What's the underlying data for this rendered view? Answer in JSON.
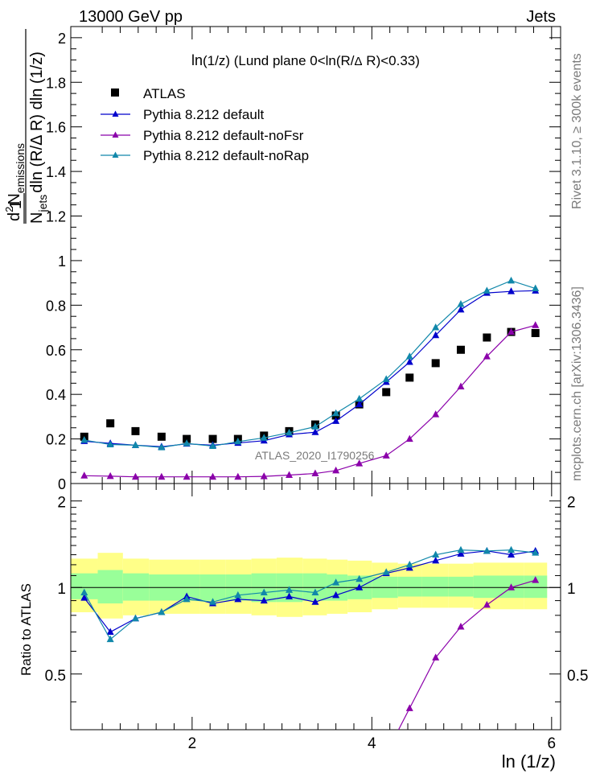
{
  "header": {
    "left": "13000 GeV pp",
    "right": "Jets"
  },
  "side_labels": {
    "rivet": "Rivet 3.1.10, ≥ 300k events",
    "mcplots": "mcplots.cern.ch [arXiv:1306.3436]"
  },
  "watermark": "ATLAS_2020_I1790256",
  "colors": {
    "atlas": "#000000",
    "default": "#0000cc",
    "nofsr": "#8b00aa",
    "norap": "#1188aa",
    "band_inner": "#99ff99",
    "band_outer": "#ffff88"
  },
  "chart_data": [
    {
      "type": "scatter",
      "panel": "main",
      "title": "ln(1/z) (Lund plane 0<ln(R/Δ R)<0.33)",
      "title_parts": {
        "a": "ln",
        "b": "(1/z) (Lund plane 0<ln(R/",
        "c": "Δ",
        "d": " R)<0.33)"
      },
      "ylabel": "1/N_jets dln(R/Δ R) d²N_emissions / dln(1/z)",
      "ylabel_parts": {
        "one": "1",
        "d2": "d",
        "sup2": "2",
        "N": "N",
        "emis": "emissions",
        "den_N": "N",
        "jets": "jets",
        "den_rest": "dln (R/Δ R) dln (1/z)"
      },
      "xlim": [
        0.65,
        6.1
      ],
      "ylim": [
        0,
        2.05
      ],
      "yticks": [
        0,
        0.2,
        0.4,
        0.6,
        0.8,
        1,
        1.2,
        1.4,
        1.6,
        1.8,
        2
      ],
      "ytick_labels": [
        "0",
        "0.2",
        "0.4",
        "0.6",
        "0.8",
        "1",
        "1.2",
        "1.4",
        "1.6",
        "1.8",
        "2"
      ],
      "x": [
        0.8,
        1.09,
        1.37,
        1.66,
        1.94,
        2.23,
        2.51,
        2.8,
        3.08,
        3.37,
        3.6,
        3.86,
        4.16,
        4.42,
        4.71,
        4.99,
        5.28,
        5.55,
        5.82
      ],
      "legend": [
        "ATLAS",
        "Pythia 8.212 default",
        "Pythia 8.212 default-noFsr",
        "Pythia 8.212 default-noRap"
      ],
      "series": [
        {
          "name": "ATLAS",
          "key": "atlas",
          "marker": "square",
          "values": [
            0.21,
            0.27,
            0.235,
            0.21,
            0.2,
            0.2,
            0.2,
            0.215,
            0.235,
            0.265,
            0.305,
            0.355,
            0.41,
            0.475,
            0.54,
            0.6,
            0.655,
            0.68,
            0.675
          ]
        },
        {
          "name": "Pythia 8.212 default",
          "key": "default",
          "marker": "triangle",
          "values": [
            0.19,
            0.18,
            0.172,
            0.165,
            0.178,
            0.172,
            0.182,
            0.192,
            0.22,
            0.23,
            0.28,
            0.355,
            0.455,
            0.545,
            0.665,
            0.78,
            0.855,
            0.862,
            0.865
          ]
        },
        {
          "name": "Pythia 8.212 default-noFsr",
          "key": "nofsr",
          "marker": "triangle",
          "values": [
            0.035,
            0.033,
            0.03,
            0.03,
            0.03,
            0.03,
            0.03,
            0.032,
            0.038,
            0.045,
            0.058,
            0.09,
            0.125,
            0.2,
            0.31,
            0.435,
            0.57,
            0.68,
            0.71
          ]
        },
        {
          "name": "Pythia 8.212 default-noRap",
          "key": "norap",
          "marker": "triangle",
          "values": [
            0.195,
            0.175,
            0.172,
            0.162,
            0.18,
            0.168,
            0.188,
            0.205,
            0.228,
            0.255,
            0.315,
            0.38,
            0.468,
            0.57,
            0.7,
            0.805,
            0.865,
            0.91,
            0.875
          ]
        }
      ]
    },
    {
      "type": "line",
      "panel": "ratio",
      "ylabel": "Ratio to ATLAS",
      "xlabel": "ln (1/z)",
      "xlim": [
        0.65,
        6.1
      ],
      "ylim": [
        0.32,
        2.3
      ],
      "xticks": [
        2,
        4,
        6
      ],
      "xtick_labels": [
        "2",
        "4",
        "6"
      ],
      "yticks": [
        0.5,
        1,
        2
      ],
      "ytick_labels": [
        "0.5",
        "1",
        "2"
      ],
      "x": [
        0.8,
        1.09,
        1.37,
        1.66,
        1.94,
        2.23,
        2.51,
        2.8,
        3.08,
        3.37,
        3.6,
        3.86,
        4.16,
        4.42,
        4.71,
        4.99,
        5.28,
        5.55,
        5.82
      ],
      "bin_edges": [
        0.65,
        0.95,
        1.23,
        1.52,
        1.8,
        2.09,
        2.37,
        2.66,
        2.94,
        3.23,
        3.5,
        3.73,
        4.0,
        4.29,
        4.56,
        4.85,
        5.13,
        5.42,
        5.69,
        5.95
      ],
      "band_outer": {
        "lo": [
          0.82,
          0.78,
          0.8,
          0.81,
          0.81,
          0.81,
          0.81,
          0.8,
          0.79,
          0.8,
          0.81,
          0.82,
          0.84,
          0.85,
          0.85,
          0.85,
          0.84,
          0.84,
          0.84
        ],
        "hi": [
          1.26,
          1.32,
          1.26,
          1.25,
          1.25,
          1.25,
          1.25,
          1.26,
          1.27,
          1.26,
          1.25,
          1.24,
          1.22,
          1.21,
          1.21,
          1.21,
          1.22,
          1.22,
          1.22
        ]
      },
      "band_inner": {
        "lo": [
          0.91,
          0.88,
          0.9,
          0.9,
          0.9,
          0.9,
          0.9,
          0.89,
          0.89,
          0.9,
          0.9,
          0.91,
          0.92,
          0.93,
          0.93,
          0.93,
          0.92,
          0.92,
          0.92
        ],
        "hi": [
          1.12,
          1.15,
          1.12,
          1.11,
          1.11,
          1.11,
          1.11,
          1.12,
          1.12,
          1.12,
          1.11,
          1.1,
          1.09,
          1.09,
          1.09,
          1.09,
          1.1,
          1.1,
          1.1
        ]
      },
      "series": [
        {
          "name": "Pythia 8.212 default",
          "key": "default",
          "values": [
            0.92,
            0.7,
            0.78,
            0.82,
            0.93,
            0.88,
            0.91,
            0.9,
            0.93,
            0.89,
            0.94,
            1.0,
            1.12,
            1.17,
            1.24,
            1.31,
            1.34,
            1.3,
            1.34
          ]
        },
        {
          "name": "Pythia 8.212 default-noFsr",
          "key": "nofsr",
          "values": [
            null,
            null,
            null,
            null,
            null,
            null,
            null,
            null,
            null,
            null,
            null,
            null,
            null,
            0.38,
            0.57,
            0.73,
            0.87,
            1.0,
            1.06
          ]
        },
        {
          "name": "Pythia 8.212 default-noRap",
          "key": "norap",
          "values": [
            0.96,
            0.66,
            0.78,
            0.82,
            0.91,
            0.89,
            0.94,
            0.96,
            0.98,
            0.96,
            1.04,
            1.07,
            1.13,
            1.2,
            1.3,
            1.35,
            1.34,
            1.35,
            1.32
          ]
        }
      ]
    }
  ]
}
